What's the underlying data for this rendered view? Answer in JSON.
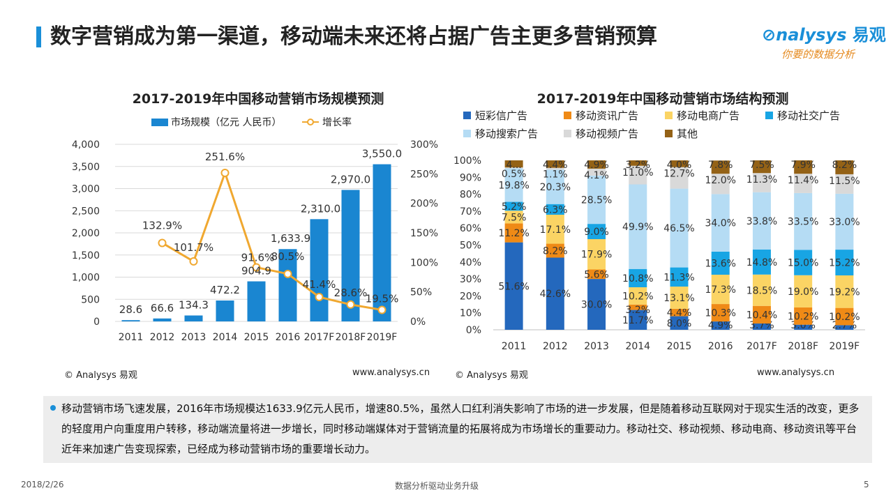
{
  "header": {
    "title": "数字营销成为第一渠道，移动端未来还将占据广告主更多营销预算",
    "logo_main": "nalysys",
    "logo_cn": "易观",
    "logo_sub": "你要的数据分析"
  },
  "credits": {
    "left1": "© Analysys 易观",
    "right1": "www.analysys.cn",
    "left2": "© Analysys 易观",
    "right2": "www.analysys.cn"
  },
  "summary": {
    "text": "移动营销市场飞速发展，2016年市场规模达1633.9亿元人民币，增速80.5%，虽然人口红利消失影响了市场的进一步发展，但是随着移动互联网对于现实生活的改变，更多的轻度用户向重度用户转移，移动端流量将进一步增长，同时移动端媒体对于营销流量的拓展将成为市场增长的重要动力。移动社交、移动视频、移动电商、移动资讯等平台近年来加速广告变现探索，已经成为移动营销市场的重要增长动力。"
  },
  "footer": {
    "date": "2018/2/26",
    "center": "数据分析驱动业务升级",
    "page": "5"
  },
  "chart_data": [
    {
      "type": "bar",
      "title": "2017-2019年中国移动营销市场规模预测",
      "categories": [
        "2011",
        "2012",
        "2013",
        "2014",
        "2015",
        "2016",
        "2017F",
        "2018F",
        "2019F"
      ],
      "series": [
        {
          "name": "市场规模（亿元 人民币）",
          "type": "bar",
          "axis": "left",
          "values": [
            28.6,
            66.6,
            134.3,
            472.2,
            904.9,
            1633.9,
            2310.0,
            2970.0,
            3550.0
          ],
          "labels": [
            "28.6",
            "66.6",
            "134.3",
            "472.2",
            "904.9",
            "1,633.9",
            "2,310.0",
            "2,970.0",
            "3,550.0"
          ],
          "color": "#1a86d1"
        },
        {
          "name": "增长率",
          "type": "line",
          "axis": "right",
          "values": [
            null,
            132.9,
            101.7,
            251.6,
            91.6,
            80.5,
            41.4,
            28.6,
            19.5
          ],
          "labels": [
            "",
            "132.9%",
            "101.7%",
            "251.6%",
            "91.6%",
            "80.5%",
            "41.4%",
            "28.6%",
            "19.5%"
          ],
          "color": "#f0a830"
        }
      ],
      "ylim": [
        0,
        4000
      ],
      "yticks": [
        "0",
        "500",
        "1,000",
        "1,500",
        "2,000",
        "2,500",
        "3,000",
        "3,500",
        "4,000"
      ],
      "y2lim": [
        0,
        300
      ],
      "y2ticks": [
        "0%",
        "50%",
        "100%",
        "150%",
        "200%",
        "250%",
        "300%"
      ],
      "grid": true,
      "legend": "top"
    },
    {
      "type": "bar",
      "stacked": true,
      "title": "2017-2019年中国移动营销市场结构预测",
      "categories": [
        "2011",
        "2012",
        "2013",
        "2014",
        "2015",
        "2016",
        "2017F",
        "2018F",
        "2019F"
      ],
      "series": [
        {
          "name": "短彩信广告",
          "color": "#2468bd",
          "values": [
            51.6,
            42.6,
            30.0,
            11.7,
            8.0,
            4.9,
            3.7,
            3.0,
            2.7
          ]
        },
        {
          "name": "移动资讯广告",
          "color": "#ef8a16",
          "values": [
            11.2,
            8.2,
            5.6,
            3.2,
            4.4,
            10.3,
            10.4,
            10.2,
            10.2
          ]
        },
        {
          "name": "移动电商广告",
          "color": "#fbd464",
          "values": [
            7.5,
            17.1,
            17.9,
            10.2,
            13.1,
            17.3,
            18.5,
            19.0,
            19.2
          ]
        },
        {
          "name": "移动社交广告",
          "color": "#18a5e4",
          "values": [
            5.2,
            6.3,
            9.0,
            10.8,
            11.3,
            13.6,
            14.8,
            15.0,
            15.2
          ]
        },
        {
          "name": "移动搜索广告",
          "color": "#b5dcf4",
          "values": [
            19.8,
            20.3,
            28.5,
            49.9,
            46.5,
            34.0,
            33.8,
            33.5,
            33.0
          ]
        },
        {
          "name": "移动视频广告",
          "color": "#d9d9d9",
          "values": [
            0.5,
            1.1,
            4.1,
            11.0,
            12.7,
            12.0,
            11.3,
            11.4,
            11.5
          ]
        },
        {
          "name": "其他",
          "color": "#946216",
          "values": [
            4.2,
            4.4,
            4.9,
            3.2,
            4.0,
            7.8,
            7.5,
            7.9,
            8.2
          ]
        }
      ],
      "labels": [
        [
          "51.6%",
          "42.6%",
          "30.0%",
          "11.7%",
          "8.0%",
          "4.9%",
          "3.7%",
          "3.0%",
          "2.7%"
        ],
        [
          "11.2%",
          "8.2%",
          "5.6%",
          "3.2%",
          "4.4%",
          "10.3%",
          "10.4%",
          "10.2%",
          "10.2%"
        ],
        [
          "7.5%",
          "17.1%",
          "17.9%",
          "10.2%",
          "13.1%",
          "17.3%",
          "18.5%",
          "19.0%",
          "19.2%"
        ],
        [
          "5.2%",
          "6.3%",
          "9.0%",
          "10.8%",
          "11.3%",
          "13.6%",
          "14.8%",
          "15.0%",
          "15.2%"
        ],
        [
          "19.8%",
          "20.3%",
          "28.5%",
          "49.9%",
          "46.5%",
          "34.0%",
          "33.8%",
          "33.5%",
          "33.0%"
        ],
        [
          "0.5%",
          "1.1%",
          "4.1%",
          "11.0%",
          "12.7%",
          "12.0%",
          "11.3%",
          "11.4%",
          "11.5%"
        ],
        [
          "4...",
          "4.4%",
          "4.9%",
          "3.2%",
          "4.0%",
          "7.8%",
          "7.5%",
          "7.9%",
          "8.2%"
        ]
      ],
      "ylim": [
        0,
        100
      ],
      "yticks": [
        "0%",
        "10%",
        "20%",
        "30%",
        "40%",
        "50%",
        "60%",
        "70%",
        "80%",
        "90%",
        "100%"
      ],
      "grid": false,
      "legend": "top"
    }
  ]
}
